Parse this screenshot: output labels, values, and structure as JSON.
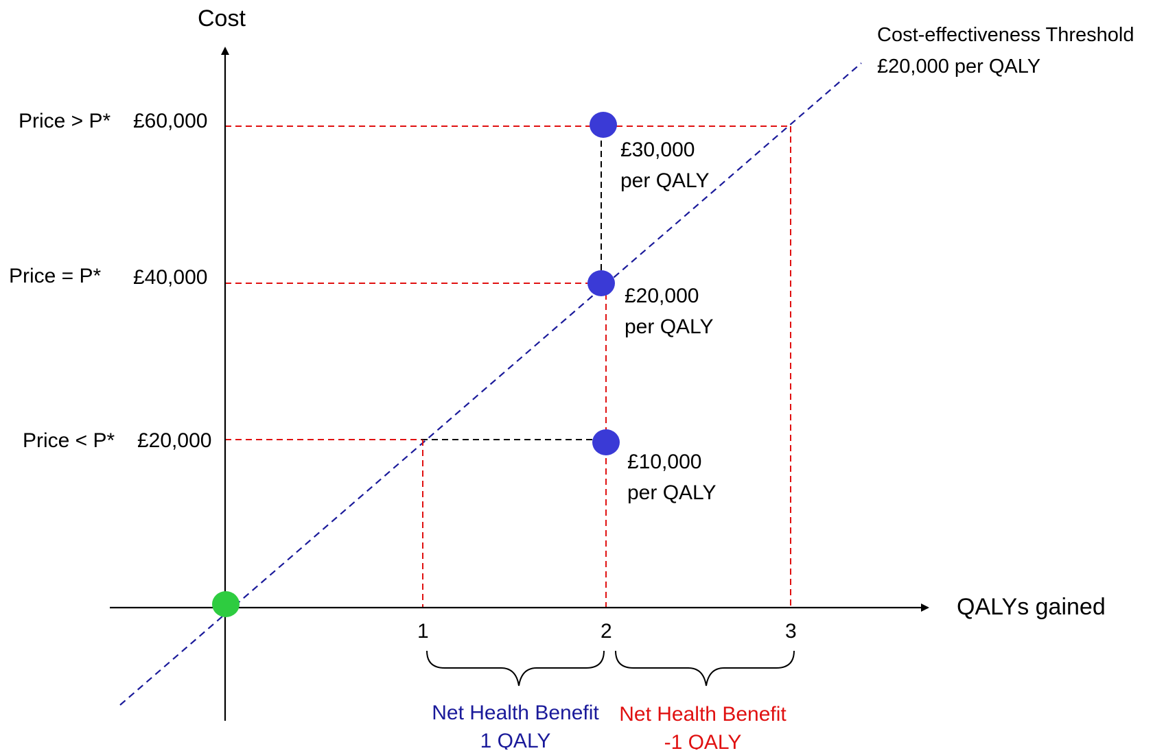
{
  "axes": {
    "y_title": "Cost",
    "x_title": "QALYs gained",
    "x_ticks": [
      "1",
      "2",
      "3"
    ]
  },
  "threshold": {
    "line1": "Cost-effectiveness Threshold",
    "line2": "£20,000 per QALY"
  },
  "price_levels": [
    {
      "label": "Price > P*",
      "cost": "£60,000",
      "icer_line1": "£30,000",
      "icer_line2": "per QALY"
    },
    {
      "label": "Price = P*",
      "cost": "£40,000",
      "icer_line1": "£20,000",
      "icer_line2": "per QALY"
    },
    {
      "label": "Price < P*",
      "cost": "£20,000",
      "icer_line1": "£10,000",
      "icer_line2": "per QALY"
    }
  ],
  "net_benefit": {
    "positive": {
      "line1": "Net Health Benefit",
      "line2": "1 QALY"
    },
    "negative": {
      "line1": "Net Health Benefit",
      "line2": "-1 QALY"
    }
  },
  "colors": {
    "threshold_line": "#1a1a9a",
    "guide_red": "#e01010",
    "guide_black": "#000000",
    "point_blue": "#3a3ad6",
    "origin_green": "#2ecc40",
    "positive_text": "#1a1a9a",
    "negative_text": "#e01010"
  }
}
